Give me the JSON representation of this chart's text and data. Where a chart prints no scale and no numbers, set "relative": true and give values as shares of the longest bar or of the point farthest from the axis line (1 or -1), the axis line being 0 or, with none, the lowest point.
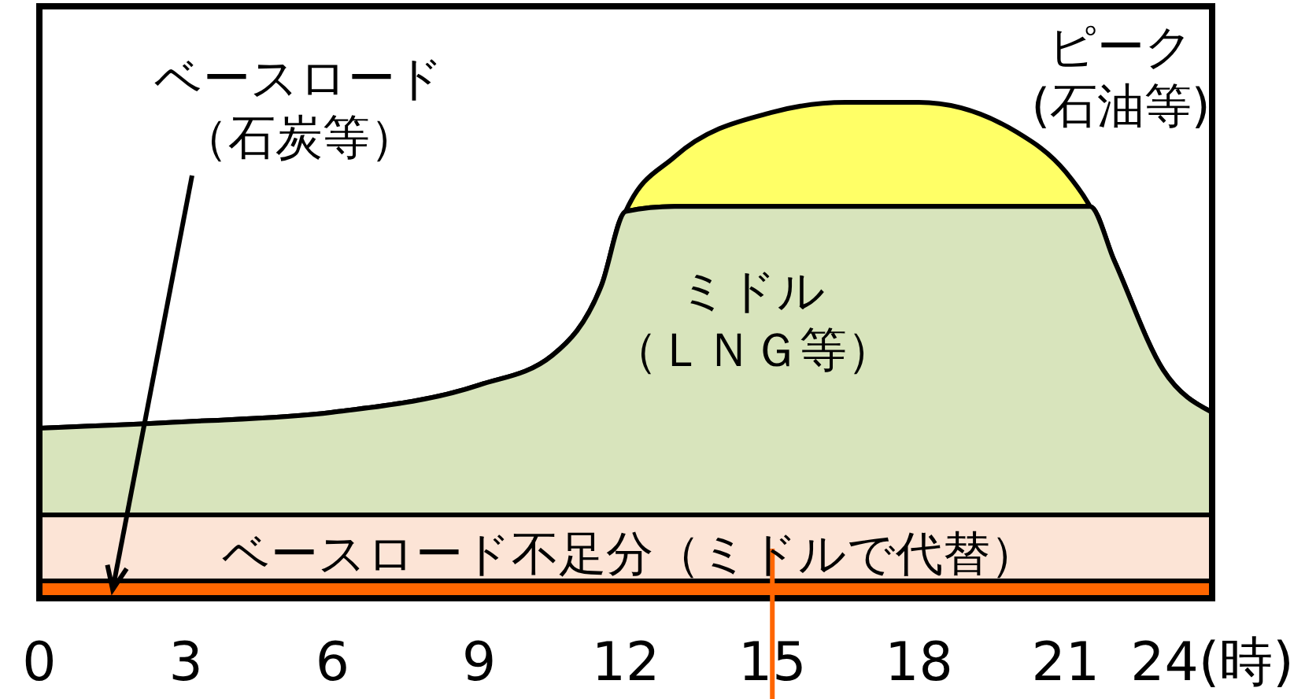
{
  "chart_data": {
    "type": "area",
    "stacked": true,
    "relative": true,
    "legend": false,
    "grid": false,
    "x": [
      0,
      3,
      6,
      9,
      10.5,
      11.5,
      12,
      13,
      15,
      16.5,
      18,
      20,
      21,
      21.5,
      22,
      23,
      24
    ],
    "xlim": [
      0,
      24
    ],
    "xticks": [
      0,
      3,
      6,
      9,
      12,
      15,
      18,
      21,
      {
        "value": 24,
        "label": "24(時)"
      }
    ],
    "series": [
      {
        "name": "ミドル（ＬＮＧ等）",
        "color": "#d8e4bc",
        "values": [
          0.343,
          0.356,
          0.375,
          0.43,
          0.49,
          0.63,
          0.78,
          0.79,
          0.79,
          0.79,
          0.79,
          0.79,
          0.79,
          0.79,
          0.68,
          0.46,
          0.375
        ]
      },
      {
        "name": "ピーク(石油等)",
        "color": "#ffff66",
        "values": [
          0,
          0,
          0,
          0,
          0,
          0,
          0,
          0.1,
          0.19,
          0.21,
          0.21,
          0.15,
          0.07,
          0,
          0,
          0,
          0
        ]
      }
    ],
    "bands": [
      {
        "axis": "y",
        "from": 0,
        "to": 0.035,
        "label": "ベースロード（石炭等）",
        "color": "#ff6600"
      },
      {
        "axis": "y",
        "from": 0.035,
        "to": 0.168,
        "label": "ベースロード不足分（ミドルで代替）",
        "color": "#fce4d6"
      }
    ],
    "ref_lines": [
      {
        "axis": "x",
        "value": 15,
        "color": "#ff6600"
      }
    ]
  }
}
